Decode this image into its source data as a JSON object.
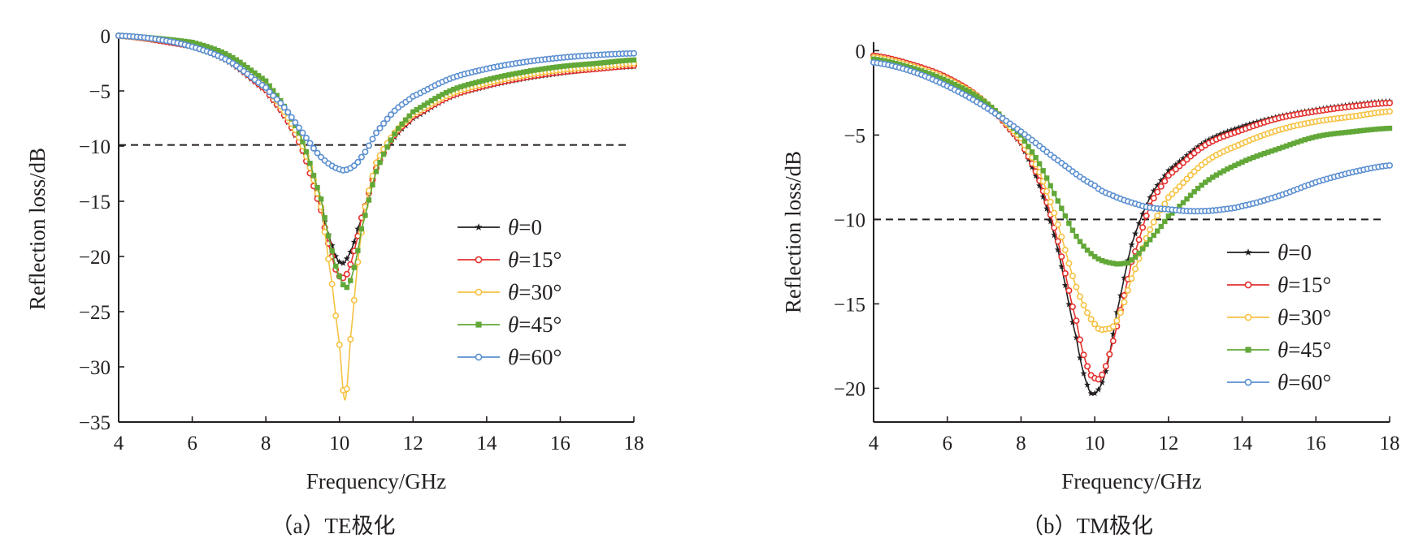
{
  "colors": {
    "theta_0": "#231f20",
    "theta_15": "#e3312d",
    "theta_30": "#f5c242",
    "theta_45": "#62a838",
    "theta_60": "#5b8fd0",
    "reference_line": "#231f20"
  },
  "series_markers": {
    "theta_0": "star",
    "theta_15": "circle",
    "theta_30": "circle",
    "theta_45": "square",
    "theta_60": "circle"
  },
  "chart_data": [
    {
      "type": "line",
      "caption": "（a）TE极化",
      "xlabel": "Frequency/GHz",
      "ylabel": "Reflection loss/dB",
      "xlim": [
        4,
        18
      ],
      "ylim": [
        -35,
        0
      ],
      "xticks": [
        4,
        6,
        8,
        10,
        12,
        14,
        16,
        18
      ],
      "yticks": [
        0,
        -5,
        -10,
        -15,
        -20,
        -25,
        -30,
        -35
      ],
      "x_tick_labels": [
        "4",
        "6",
        "8",
        "10",
        "12",
        "14",
        "16",
        "18"
      ],
      "y_tick_labels": [
        "0",
        "−5",
        "−10",
        "−15",
        "−20",
        "−25",
        "−30",
        "−35"
      ],
      "reference_line_y": -9.9,
      "grid": false,
      "legend_position": "right",
      "series": [
        {
          "key": "theta_0",
          "theta_symbol": "θ",
          "label_rest": "=0",
          "x": [
            4,
            6,
            7,
            8,
            8.5,
            9,
            9.5,
            9.8,
            10,
            10.2,
            10.5,
            11,
            11.5,
            12,
            13,
            14,
            15,
            16,
            17,
            18
          ],
          "y": [
            0,
            -1.0,
            -2.4,
            -5.0,
            -7.3,
            -10.5,
            -15.5,
            -19.0,
            -20.5,
            -20.2,
            -17.5,
            -12.0,
            -9.2,
            -7.5,
            -5.6,
            -4.6,
            -3.9,
            -3.4,
            -3.0,
            -2.8
          ]
        },
        {
          "key": "theta_15",
          "theta_symbol": "θ",
          "label_rest": "=15°",
          "x": [
            4,
            6,
            7,
            8,
            8.5,
            9,
            9.5,
            9.8,
            10,
            10.2,
            10.4,
            10.6,
            11,
            11.5,
            12,
            13,
            14,
            15,
            16,
            17,
            18
          ],
          "y": [
            0,
            -0.95,
            -2.3,
            -4.9,
            -7.2,
            -10.4,
            -15.8,
            -20.0,
            -21.8,
            -21.6,
            -19.5,
            -16.5,
            -12.0,
            -9.0,
            -7.3,
            -5.5,
            -4.5,
            -3.8,
            -3.3,
            -3.0,
            -2.7
          ]
        },
        {
          "key": "theta_30",
          "theta_symbol": "θ",
          "label_rest": "=30°",
          "x": [
            4,
            6,
            7,
            8,
            8.5,
            9,
            9.5,
            9.8,
            10,
            10.15,
            10.3,
            10.5,
            10.7,
            11,
            11.5,
            12,
            13,
            14,
            15,
            16,
            17,
            18
          ],
          "y": [
            0,
            -0.8,
            -2.1,
            -4.6,
            -6.9,
            -10.0,
            -15.5,
            -22.5,
            -28.0,
            -33.0,
            -27.5,
            -20.5,
            -15.5,
            -11.5,
            -8.8,
            -7.1,
            -5.3,
            -4.3,
            -3.6,
            -3.1,
            -2.8,
            -2.5
          ]
        },
        {
          "key": "theta_45",
          "theta_symbol": "θ",
          "label_rest": "=45°",
          "x": [
            4,
            6,
            7,
            8,
            8.5,
            9,
            9.5,
            9.8,
            10,
            10.2,
            10.4,
            10.6,
            11,
            11.5,
            12,
            13,
            14,
            15,
            16,
            17,
            18
          ],
          "y": [
            0,
            -0.6,
            -1.8,
            -4.1,
            -6.4,
            -9.6,
            -14.8,
            -19.5,
            -21.8,
            -22.8,
            -21.0,
            -17.5,
            -12.3,
            -8.9,
            -6.9,
            -5.0,
            -4.0,
            -3.3,
            -2.8,
            -2.5,
            -2.2
          ]
        },
        {
          "key": "theta_60",
          "theta_symbol": "θ",
          "label_rest": "=60°",
          "x": [
            4,
            5,
            6,
            7,
            8,
            8.5,
            9,
            9.5,
            10,
            10.3,
            10.6,
            11,
            11.5,
            12,
            13,
            14,
            15,
            16,
            17,
            18
          ],
          "y": [
            0,
            -0.3,
            -1.0,
            -2.3,
            -4.7,
            -6.5,
            -8.8,
            -11.0,
            -12.1,
            -12.0,
            -11.0,
            -8.8,
            -6.8,
            -5.5,
            -3.9,
            -3.0,
            -2.4,
            -2.0,
            -1.75,
            -1.6
          ]
        }
      ]
    },
    {
      "type": "line",
      "caption": "（b）TM极化",
      "xlabel": "Frequency/GHz",
      "ylabel": "Reflection loss/dB",
      "xlim": [
        4,
        18
      ],
      "ylim": [
        -22,
        0.5
      ],
      "xticks": [
        4,
        6,
        8,
        10,
        12,
        14,
        16,
        18
      ],
      "yticks": [
        0,
        -5,
        -10,
        -15,
        -20
      ],
      "x_tick_labels": [
        "4",
        "6",
        "8",
        "10",
        "12",
        "14",
        "16",
        "18"
      ],
      "y_tick_labels": [
        "0",
        "−5",
        "−10",
        "−15",
        "−20"
      ],
      "reference_line_y": -10,
      "grid": false,
      "legend_position": "bottom-right",
      "series": [
        {
          "key": "theta_0",
          "theta_symbol": "θ",
          "label_rest": "=0",
          "x": [
            4,
            5,
            6,
            7,
            8,
            8.5,
            9,
            9.5,
            9.8,
            10,
            10.3,
            10.6,
            11,
            11.5,
            12,
            13,
            14,
            15,
            16,
            17,
            18
          ],
          "y": [
            -0.3,
            -0.8,
            -1.7,
            -3.0,
            -5.5,
            -8.0,
            -11.8,
            -17.0,
            -19.8,
            -20.3,
            -19.0,
            -15.5,
            -11.5,
            -8.7,
            -7.1,
            -5.4,
            -4.5,
            -3.9,
            -3.5,
            -3.2,
            -3.0
          ]
        },
        {
          "key": "theta_15",
          "theta_symbol": "θ",
          "label_rest": "=15°",
          "x": [
            4,
            5,
            6,
            7,
            8,
            8.5,
            9,
            9.5,
            9.8,
            10,
            10.2,
            10.5,
            10.8,
            11,
            11.5,
            12,
            13,
            14,
            15,
            16,
            17,
            18
          ],
          "y": [
            -0.3,
            -0.8,
            -1.6,
            -3.0,
            -5.4,
            -7.7,
            -11.3,
            -16.0,
            -18.7,
            -19.4,
            -19.2,
            -17.2,
            -14.5,
            -12.5,
            -9.2,
            -7.4,
            -5.6,
            -4.7,
            -4.0,
            -3.6,
            -3.3,
            -3.1
          ]
        },
        {
          "key": "theta_30",
          "theta_symbol": "θ",
          "label_rest": "=30°",
          "x": [
            4,
            5,
            6,
            7,
            8,
            8.5,
            9,
            9.5,
            10,
            10.3,
            10.6,
            11,
            11.5,
            12,
            13,
            14,
            15,
            16,
            17,
            18
          ],
          "y": [
            -0.4,
            -0.9,
            -1.7,
            -3.0,
            -5.2,
            -7.2,
            -10.3,
            -14.0,
            -16.2,
            -16.5,
            -16.0,
            -13.5,
            -10.6,
            -8.7,
            -6.6,
            -5.5,
            -4.7,
            -4.2,
            -3.9,
            -3.6
          ]
        },
        {
          "key": "theta_45",
          "theta_symbol": "θ",
          "label_rest": "=45°",
          "x": [
            4,
            5,
            6,
            7,
            8,
            8.5,
            9,
            9.5,
            10,
            10.5,
            10.8,
            11,
            11.5,
            12,
            13,
            14,
            15,
            16,
            17,
            18
          ],
          "y": [
            -0.5,
            -1.0,
            -1.8,
            -3.0,
            -5.0,
            -6.7,
            -8.9,
            -11.0,
            -12.2,
            -12.6,
            -12.6,
            -12.4,
            -11.2,
            -9.8,
            -7.8,
            -6.6,
            -5.8,
            -5.1,
            -4.8,
            -4.6
          ]
        },
        {
          "key": "theta_60",
          "theta_symbol": "θ",
          "label_rest": "=60°",
          "x": [
            4,
            5,
            6,
            7,
            8,
            9,
            10,
            10.5,
            11,
            11.5,
            12,
            12.5,
            13,
            13.5,
            14,
            15,
            16,
            17,
            18
          ],
          "y": [
            -0.7,
            -1.2,
            -2.1,
            -3.3,
            -4.8,
            -6.5,
            -8.0,
            -8.6,
            -9.0,
            -9.3,
            -9.4,
            -9.5,
            -9.5,
            -9.4,
            -9.2,
            -8.6,
            -7.8,
            -7.2,
            -6.8
          ]
        }
      ]
    }
  ]
}
